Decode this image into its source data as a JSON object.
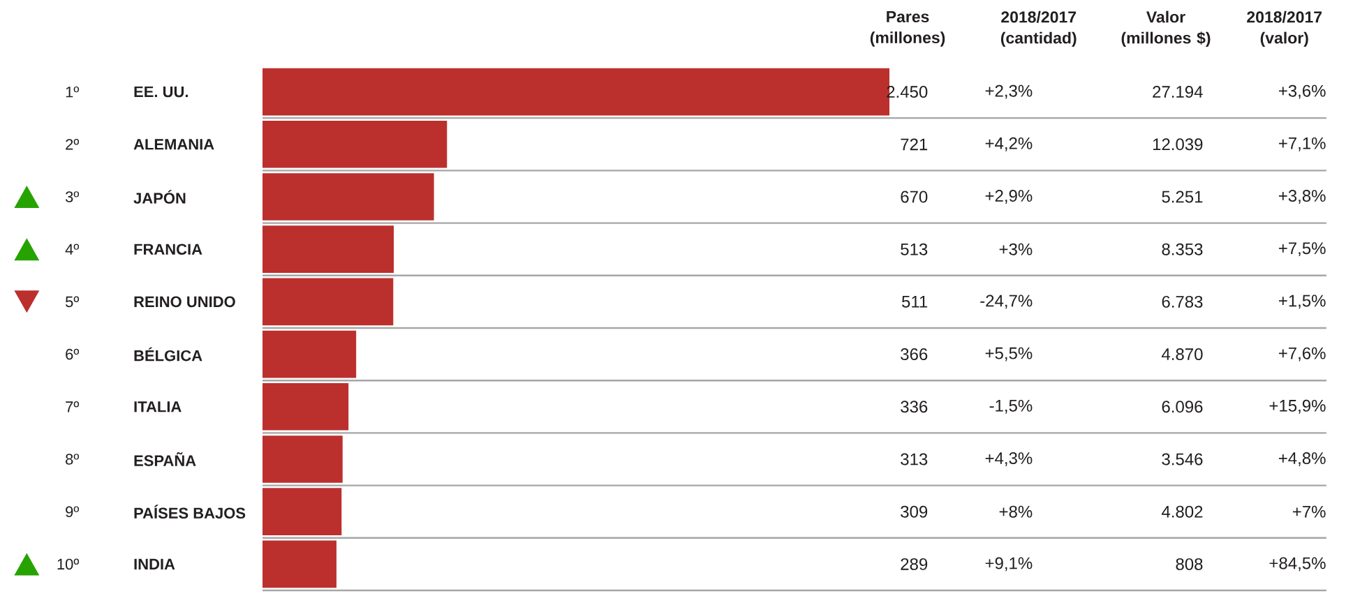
{
  "chart_data": {
    "type": "bar",
    "orientation": "horizontal",
    "categories": [
      "EE. UU.",
      "ALEMANIA",
      "JAPÓN",
      "FRANCIA",
      "REINO UNIDO",
      "BÉLGICA",
      "ITALIA",
      "ESPAÑA",
      "PAÍSES BAJOS",
      "INDIA"
    ],
    "values": [
      2450,
      721,
      670,
      513,
      511,
      366,
      336,
      313,
      309,
      289
    ],
    "value_labels": [
      "2.450",
      "721",
      "670",
      "513",
      "511",
      "366",
      "336",
      "313",
      "309",
      "289"
    ],
    "color": "#bb302d",
    "annotations": [
      "Pares (millones)",
      "2018/2017 (cantidad)",
      "Valor (millones $)",
      "2018/2017 (valor)",
      "1º",
      "+2,3%",
      "27.194",
      "+3,6%",
      "2º",
      "+4,2%",
      "12.039",
      "+7,1%",
      "3º",
      "+2,9%",
      "5.251",
      "+3,8%",
      "4º",
      "+3%",
      "8.353",
      "+7,5%",
      "5º",
      "-24,7%",
      "6.783",
      "+1,5%",
      "6º",
      "+5,5%",
      "4.870",
      "+7,6%",
      "7º",
      "-1,5%",
      "6.096",
      "+15,9%",
      "8º",
      "+4,3%",
      "3.546",
      "+4,8%",
      "9º",
      "+8%",
      "4.802",
      "+7%",
      "10º",
      "+9,1%",
      "808",
      "+84,5%"
    ]
  }
}
